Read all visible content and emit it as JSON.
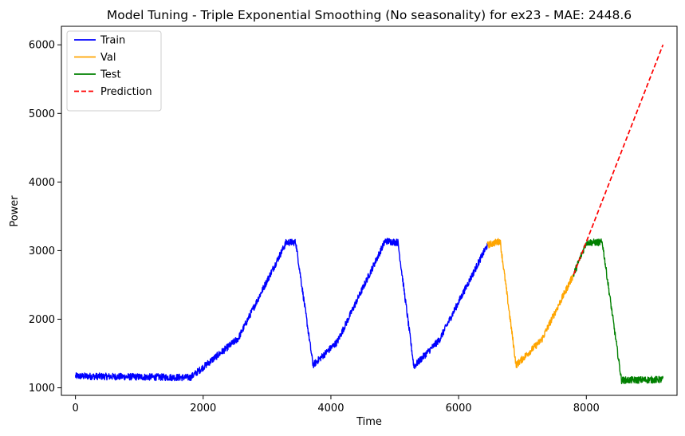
{
  "chart_data": {
    "type": "line",
    "title": "Model Tuning - Triple Exponential Smoothing (No seasonality) for ex23 - MAE: 2448.6",
    "xlabel": "Time",
    "ylabel": "Power",
    "xlim": [
      -220,
      9420
    ],
    "ylim": [
      890,
      6270
    ],
    "x_ticks": [
      0,
      2000,
      4000,
      6000,
      8000
    ],
    "y_ticks": [
      1000,
      2000,
      3000,
      4000,
      5000,
      6000
    ],
    "x_tick_labels": [
      "0",
      "2000",
      "4000",
      "6000",
      "8000"
    ],
    "y_tick_labels": [
      "1000",
      "2000",
      "3000",
      "4000",
      "5000",
      "6000"
    ],
    "grid": false,
    "legend_position": "top-left",
    "noise_amplitude": 50,
    "series": [
      {
        "name": "Train",
        "color": "#0000ff",
        "style": "solid",
        "x": [
          0,
          1800,
          2000,
          2550,
          3300,
          3450,
          3720,
          4100,
          4850,
          5050,
          5300,
          5700,
          6450
        ],
        "y": [
          1170,
          1150,
          1300,
          1720,
          3120,
          3120,
          1330,
          1670,
          3140,
          3120,
          1310,
          1700,
          3080
        ]
      },
      {
        "name": "Val",
        "color": "#ffa500",
        "style": "solid",
        "x": [
          6450,
          6650,
          6900,
          7300,
          7800
        ],
        "y": [
          3080,
          3140,
          1330,
          1700,
          2650
        ]
      },
      {
        "name": "Test",
        "color": "#008000",
        "style": "solid",
        "x": [
          7800,
          8000,
          8250,
          8550,
          9200
        ],
        "y": [
          2650,
          3120,
          3120,
          1110,
          1120
        ]
      },
      {
        "name": "Prediction",
        "color": "#ff0000",
        "style": "dashed",
        "x": [
          7800,
          9200
        ],
        "y": [
          2650,
          6000
        ]
      }
    ]
  }
}
